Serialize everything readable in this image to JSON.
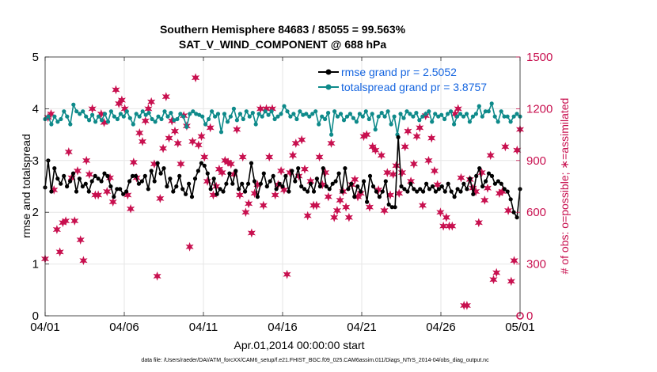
{
  "chart_data": {
    "type": "line",
    "title": "Southern Hemisphere 84683 / 85055 = 99.563%",
    "subtitle": "SAT_V_WIND_COMPONENT @ 688 hPa",
    "xlabel": "Apr.01,2014 00:00:00 start",
    "ylabel": "rmse and totalspread",
    "y2label": "# of obs: o=possible; ∗=assimilated",
    "xlim": [
      0,
      30
    ],
    "ylim": [
      0,
      5
    ],
    "y2lim": [
      0,
      1500
    ],
    "grid": true,
    "x_ticks": [
      {
        "value": 0,
        "label": "04/01"
      },
      {
        "value": 5,
        "label": "04/06"
      },
      {
        "value": 10,
        "label": "04/11"
      },
      {
        "value": 15,
        "label": "04/16"
      },
      {
        "value": 20,
        "label": "04/21"
      },
      {
        "value": 25,
        "label": "04/26"
      },
      {
        "value": 30,
        "label": "05/01"
      }
    ],
    "y_ticks": [
      0,
      1,
      2,
      3,
      4,
      5
    ],
    "y2_ticks": [
      0,
      300,
      600,
      900,
      1200,
      1500
    ],
    "legend_position": "top-right",
    "colors": {
      "rmse": "#000000",
      "spread": "#0e8a8a",
      "obs": "#c8104f",
      "legend_text": "#1565e0"
    },
    "series": [
      {
        "name": "rmse",
        "legend": "rmse grand pr = 2.5052",
        "values": [
          2.48,
          3.0,
          2.4,
          2.85,
          2.65,
          2.55,
          2.7,
          2.5,
          2.6,
          2.75,
          2.4,
          2.65,
          2.5,
          2.55,
          2.4,
          2.6,
          2.7,
          2.65,
          2.6,
          2.75,
          2.7,
          2.5,
          2.3,
          2.45,
          2.45,
          2.35,
          2.4,
          2.6,
          2.7,
          2.7,
          2.55,
          2.6,
          2.7,
          2.45,
          2.8,
          2.6,
          2.95,
          2.75,
          2.85,
          2.5,
          2.65,
          2.4,
          2.5,
          2.7,
          2.45,
          2.35,
          2.55,
          2.3,
          2.65,
          2.8,
          2.95,
          2.9,
          2.75,
          2.45,
          2.65,
          2.35,
          2.45,
          2.4,
          2.55,
          2.75,
          2.55,
          2.8,
          2.45,
          2.55,
          2.4,
          2.55,
          2.95,
          2.6,
          2.3,
          2.55,
          2.75,
          2.5,
          2.6,
          2.7,
          2.45,
          2.55,
          2.5,
          2.7,
          2.4,
          2.8,
          2.6,
          2.85,
          2.5,
          2.45,
          2.4,
          2.55,
          2.4,
          2.65,
          2.5,
          2.85,
          2.5,
          2.45,
          2.55,
          2.6,
          2.75,
          2.4,
          2.85,
          2.45,
          2.55,
          2.3,
          2.5,
          2.4,
          2.6,
          2.2,
          2.7,
          2.5,
          2.4,
          2.3,
          2.4,
          2.6,
          2.15,
          2.1,
          2.1,
          3.45,
          2.5,
          2.45,
          2.4,
          2.55,
          2.45,
          2.4,
          2.45,
          2.4,
          2.55,
          2.45,
          2.5,
          2.4,
          2.45,
          2.5,
          2.4,
          2.55,
          2.4,
          2.3,
          2.45,
          2.4,
          2.55,
          2.45,
          2.65,
          2.35,
          2.7,
          2.85,
          2.5,
          2.6,
          2.75,
          2.7,
          2.55,
          2.6,
          2.55,
          2.45,
          2.4,
          2.25,
          2.0,
          1.9,
          2.45
        ]
      },
      {
        "name": "totalspread",
        "legend": "totalspread grand pr = 3.8757",
        "values": [
          3.8,
          3.85,
          3.7,
          3.85,
          3.75,
          3.8,
          3.95,
          3.85,
          3.7,
          4.08,
          3.95,
          3.9,
          3.95,
          3.85,
          3.78,
          3.88,
          3.75,
          3.85,
          3.78,
          3.9,
          3.75,
          3.95,
          3.85,
          3.8,
          3.9,
          3.85,
          3.95,
          3.82,
          3.7,
          3.9,
          3.85,
          3.95,
          3.88,
          3.92,
          3.8,
          3.75,
          3.85,
          3.8,
          3.95,
          3.85,
          3.92,
          3.78,
          3.8,
          3.9,
          3.85,
          3.65,
          3.9,
          3.95,
          3.9,
          3.88,
          3.85,
          3.7,
          3.8,
          3.95,
          3.85,
          3.9,
          3.55,
          3.9,
          3.75,
          3.85,
          4.0,
          3.78,
          3.9,
          3.8,
          3.95,
          3.85,
          3.92,
          3.7,
          3.9,
          3.85,
          3.95,
          3.88,
          3.95,
          3.8,
          3.85,
          3.9,
          4.05,
          3.95,
          3.85,
          3.9,
          3.8,
          3.95,
          3.88,
          3.9,
          3.85,
          3.9,
          3.95,
          3.7,
          3.85,
          3.8,
          3.92,
          3.5,
          3.95,
          3.85,
          3.9,
          3.78,
          3.85,
          3.9,
          3.82,
          3.75,
          3.9,
          3.85,
          3.95,
          3.8,
          3.9,
          3.6,
          3.85,
          3.92,
          3.85,
          3.95,
          3.7,
          3.85,
          3.5,
          3.9,
          3.82,
          3.95,
          3.9,
          3.85,
          3.92,
          3.78,
          3.85,
          3.9,
          3.95,
          3.75,
          3.9,
          3.85,
          3.88,
          3.8,
          3.9,
          3.95,
          3.7,
          3.85,
          3.9,
          3.85,
          3.9,
          3.75,
          3.85,
          3.9,
          4.05,
          3.85,
          3.95,
          3.95,
          4.1,
          3.85,
          3.75,
          3.95,
          3.85,
          3.85,
          3.75,
          3.85,
          3.9,
          3.85
        ]
      },
      {
        "name": "obs_assimilated",
        "axis": "right",
        "marker": "star",
        "values": [
          330,
          1150,
          1170,
          730,
          500,
          370,
          540,
          550,
          950,
          800,
          550,
          840,
          440,
          320,
          900,
          820,
          1200,
          700,
          700,
          1170,
          1120,
          720,
          800,
          660,
          1310,
          1230,
          1250,
          1200,
          700,
          620,
          890,
          800,
          1060,
          1010,
          1130,
          1200,
          1240,
          880,
          230,
          680,
          970,
          1270,
          1030,
          1130,
          1070,
          1000,
          880,
          1160,
          1100,
          400,
          1010,
          1380,
          990,
          1040,
          920,
          780,
          1090,
          700,
          750,
          850,
          830,
          900,
          890,
          880,
          820,
          1080,
          700,
          920,
          600,
          650,
          480,
          710,
          760,
          1200,
          640,
          1200,
          920,
          1200,
          700,
          760,
          840,
          730,
          240,
          830,
          930,
          1000,
          810,
          1020,
          850,
          580,
          780,
          640,
          640,
          920,
          760,
          830,
          690,
          1000,
          570,
          610,
          670,
          720,
          630,
          570,
          760,
          790,
          690,
          710,
          1040,
          1050,
          630,
          980,
          960,
          730,
          930,
          610,
          830,
          700,
          820,
          870,
          710,
          830,
          980,
          1070,
          780,
          880,
          1040,
          1090,
          640,
          1160,
          900,
          1030,
          840,
          760,
          600,
          520,
          570,
          520,
          520,
          1170,
          1200,
          800,
          60,
          60,
          790,
          740,
          720,
          540,
          830,
          670,
          740,
          930,
          210,
          250,
          710,
          720,
          980,
          610,
          200,
          320,
          960,
          1080
        ]
      }
    ],
    "footer": "data file: /Users/raeder/DAI/ATM_forcXX/CAM6_setup/f.e21.FHIST_BGC.f09_025.CAM6assim.011/Diags_NTrS_2014-04/obs_diag_output.nc",
    "extra_label": "0"
  }
}
